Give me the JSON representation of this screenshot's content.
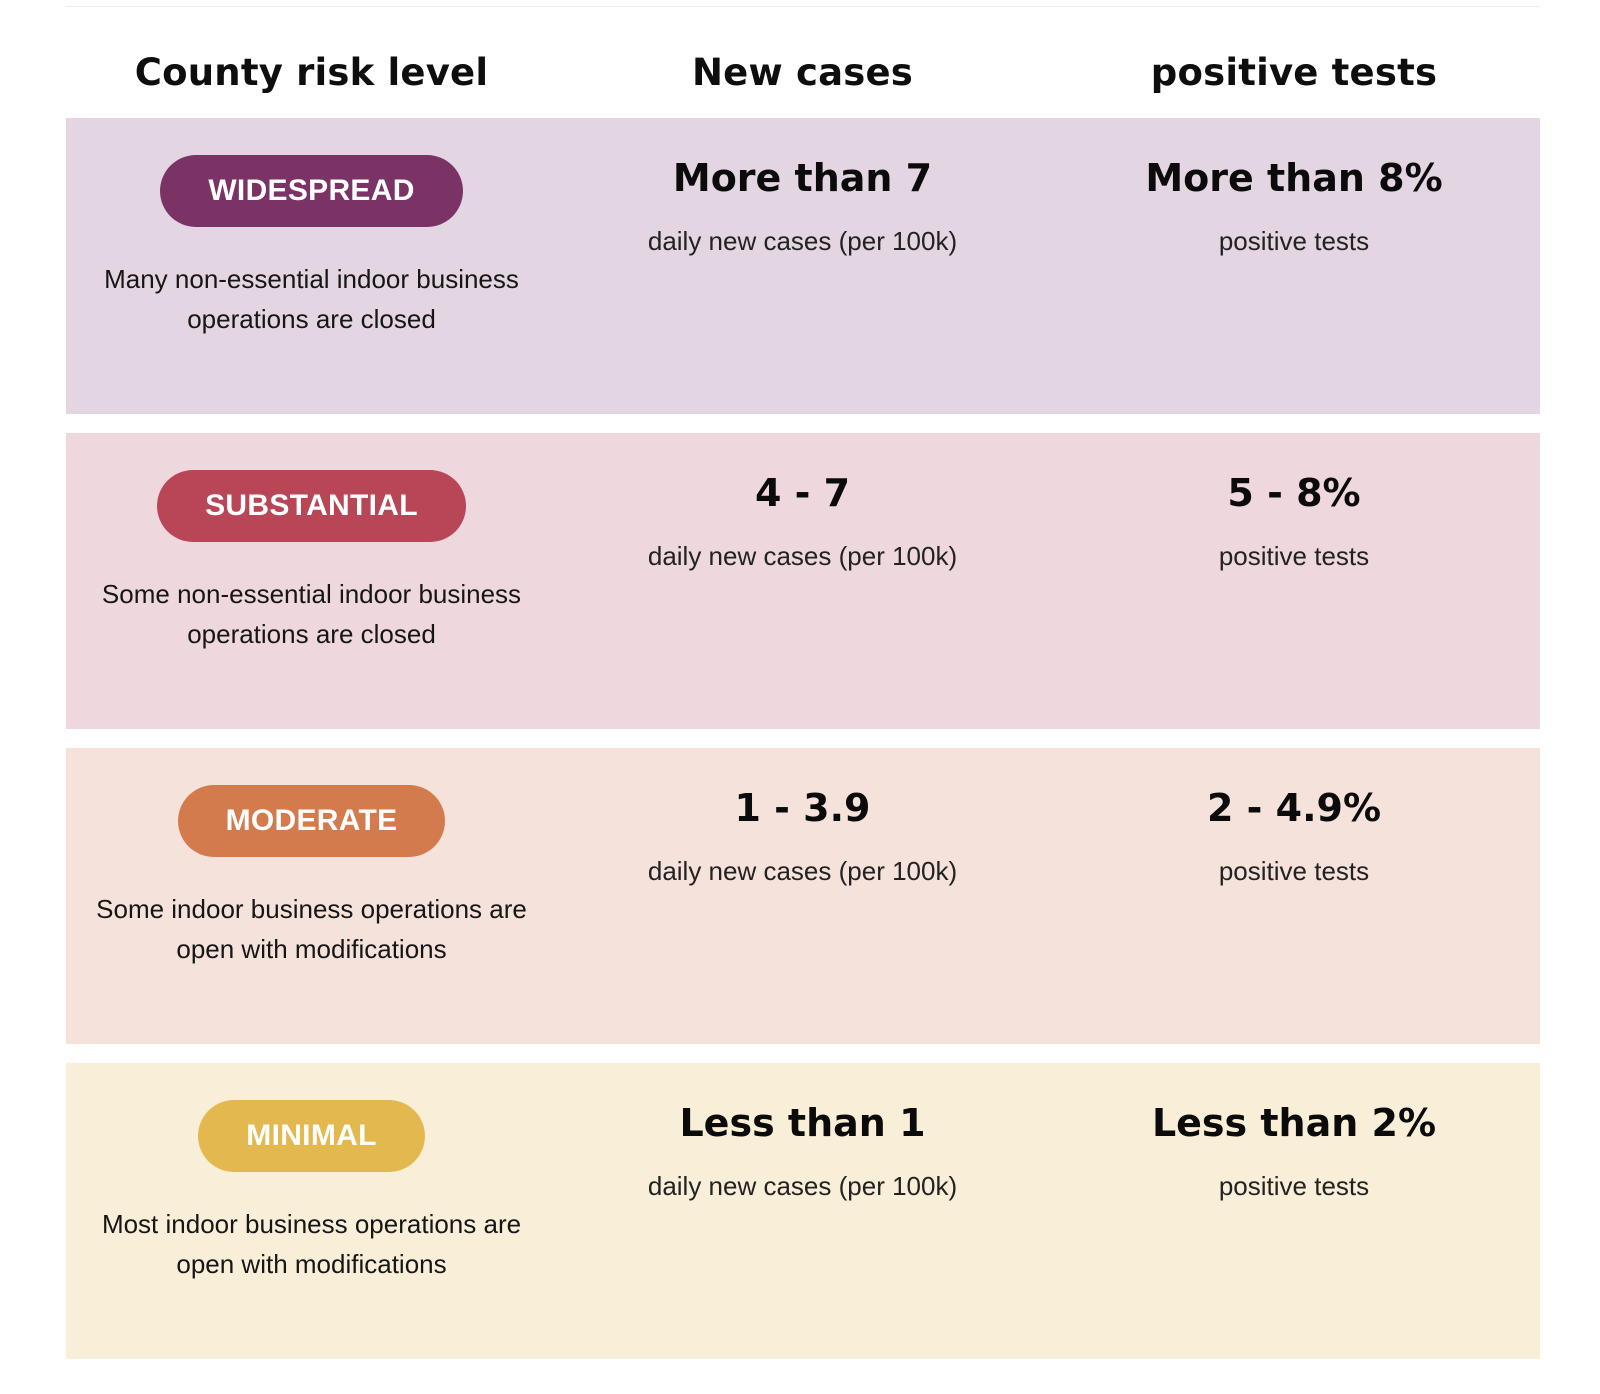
{
  "header": {
    "col1": "County risk level",
    "col2": "New cases",
    "col3": "positive tests"
  },
  "tiers": [
    {
      "badge": "WIDESPREAD",
      "badge_color": "#7b3366",
      "bg_color": "#e3d5e1",
      "description": "Many non-essential indoor business operations are closed",
      "new_cases": "More than 7",
      "new_cases_label": "daily new cases (per 100k)",
      "positive": "More than 8%",
      "positive_label": "positive tests"
    },
    {
      "badge": "SUBSTANTIAL",
      "badge_color": "#b84657",
      "bg_color": "#efd8dd",
      "description": "Some non-essential indoor business operations are closed",
      "new_cases": "4 - 7",
      "new_cases_label": "daily new cases (per 100k)",
      "positive": "5 - 8%",
      "positive_label": "positive tests"
    },
    {
      "badge": "MODERATE",
      "badge_color": "#d37b4d",
      "bg_color": "#f5e2da",
      "description": "Some indoor business operations are open with modifications",
      "new_cases": "1 - 3.9",
      "new_cases_label": "daily new cases (per 100k)",
      "positive": "2 - 4.9%",
      "positive_label": "positive tests"
    },
    {
      "badge": "MINIMAL",
      "badge_color": "#e3b94f",
      "bg_color": "#f9efd9",
      "description": "Most indoor business operations are open with modifications",
      "new_cases": "Less than 1",
      "new_cases_label": "daily new cases (per 100k)",
      "positive": "Less than 2%",
      "positive_label": "positive tests"
    }
  ]
}
